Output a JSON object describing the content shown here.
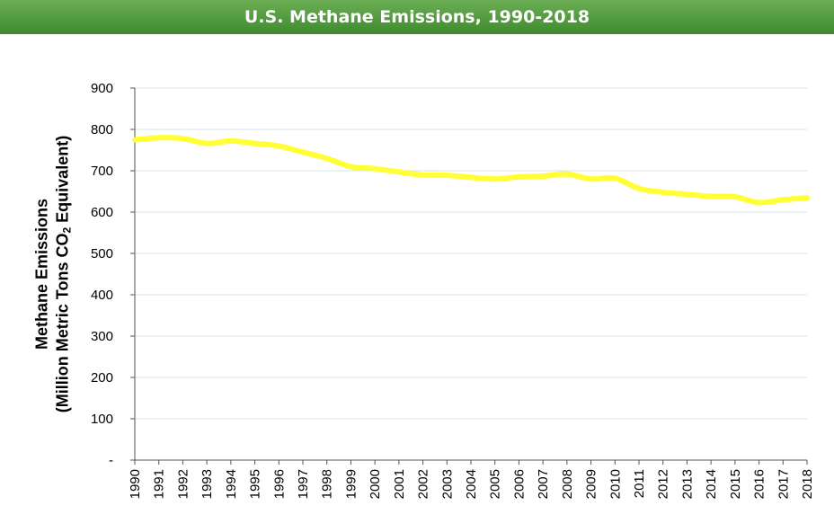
{
  "header": {
    "title": "U.S. Methane Emissions, 1990-2018"
  },
  "chart_data": {
    "type": "line",
    "title": "U.S. Methane Emissions, 1990-2018",
    "xlabel": "",
    "ylabel_line1": "Methane Emissions",
    "ylabel_line2_pre": "(Million Metric Tons CO",
    "ylabel_line2_sub": "2",
    "ylabel_line2_post": " Equivalent)",
    "ylim": [
      0,
      900
    ],
    "yticks": [
      0,
      100,
      200,
      300,
      400,
      500,
      600,
      700,
      800,
      900
    ],
    "ytick_labels": [
      "-",
      "100",
      "200",
      "300",
      "400",
      "500",
      "600",
      "700",
      "800",
      "900"
    ],
    "grid": true,
    "line_color": "#ffff33",
    "grid_color": "#cfe3ee",
    "x": [
      "1990",
      "1991",
      "1992",
      "1993",
      "1994",
      "1995",
      "1996",
      "1997",
      "1998",
      "1999",
      "2000",
      "2001",
      "2002",
      "2003",
      "2004",
      "2005",
      "2006",
      "2007",
      "2008",
      "2009",
      "2010",
      "2011",
      "2012",
      "2013",
      "2014",
      "2015",
      "2016",
      "2017",
      "2018"
    ],
    "series": [
      {
        "values": [
          775,
          780,
          778,
          766,
          772,
          766,
          760,
          745,
          730,
          710,
          705,
          697,
          690,
          689,
          684,
          680,
          685,
          687,
          692,
          680,
          682,
          657,
          648,
          643,
          638,
          637,
          623,
          630,
          634
        ]
      }
    ]
  }
}
